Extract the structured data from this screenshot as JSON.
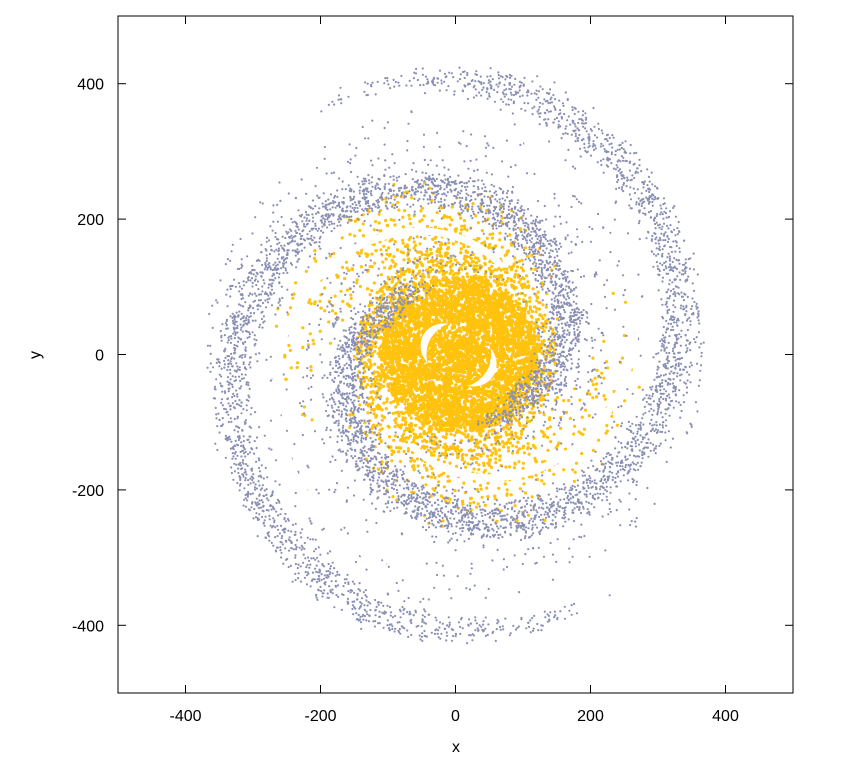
{
  "chart_data": {
    "type": "scatter",
    "title": "",
    "xlabel": "x",
    "ylabel": "y",
    "xlim": [
      -500,
      500
    ],
    "ylim": [
      -500,
      500
    ],
    "grid": false,
    "xticks": [
      -400,
      -200,
      0,
      200,
      400
    ],
    "yticks": [
      -400,
      -200,
      0,
      200,
      400
    ],
    "xtick_labels": [
      "-400",
      "-200",
      "0",
      "200",
      "400"
    ],
    "ytick_labels": [
      "-400",
      "-200",
      "0",
      "200",
      "400"
    ],
    "series": [
      {
        "color": "#ffc20e",
        "description": "dense inner disk of particles",
        "r_range": [
          0,
          280
        ],
        "core_radius": 150
      },
      {
        "color": "#8a8fb3",
        "description": "tightly wound two-armed spiral",
        "r_range": [
          100,
          420
        ],
        "arms": 2,
        "winding_rad_per_unit": 0.0082
      }
    ],
    "inner_features": [
      {
        "description": "two crescent gaps near centre",
        "r_range": [
          25,
          75
        ]
      }
    ]
  }
}
